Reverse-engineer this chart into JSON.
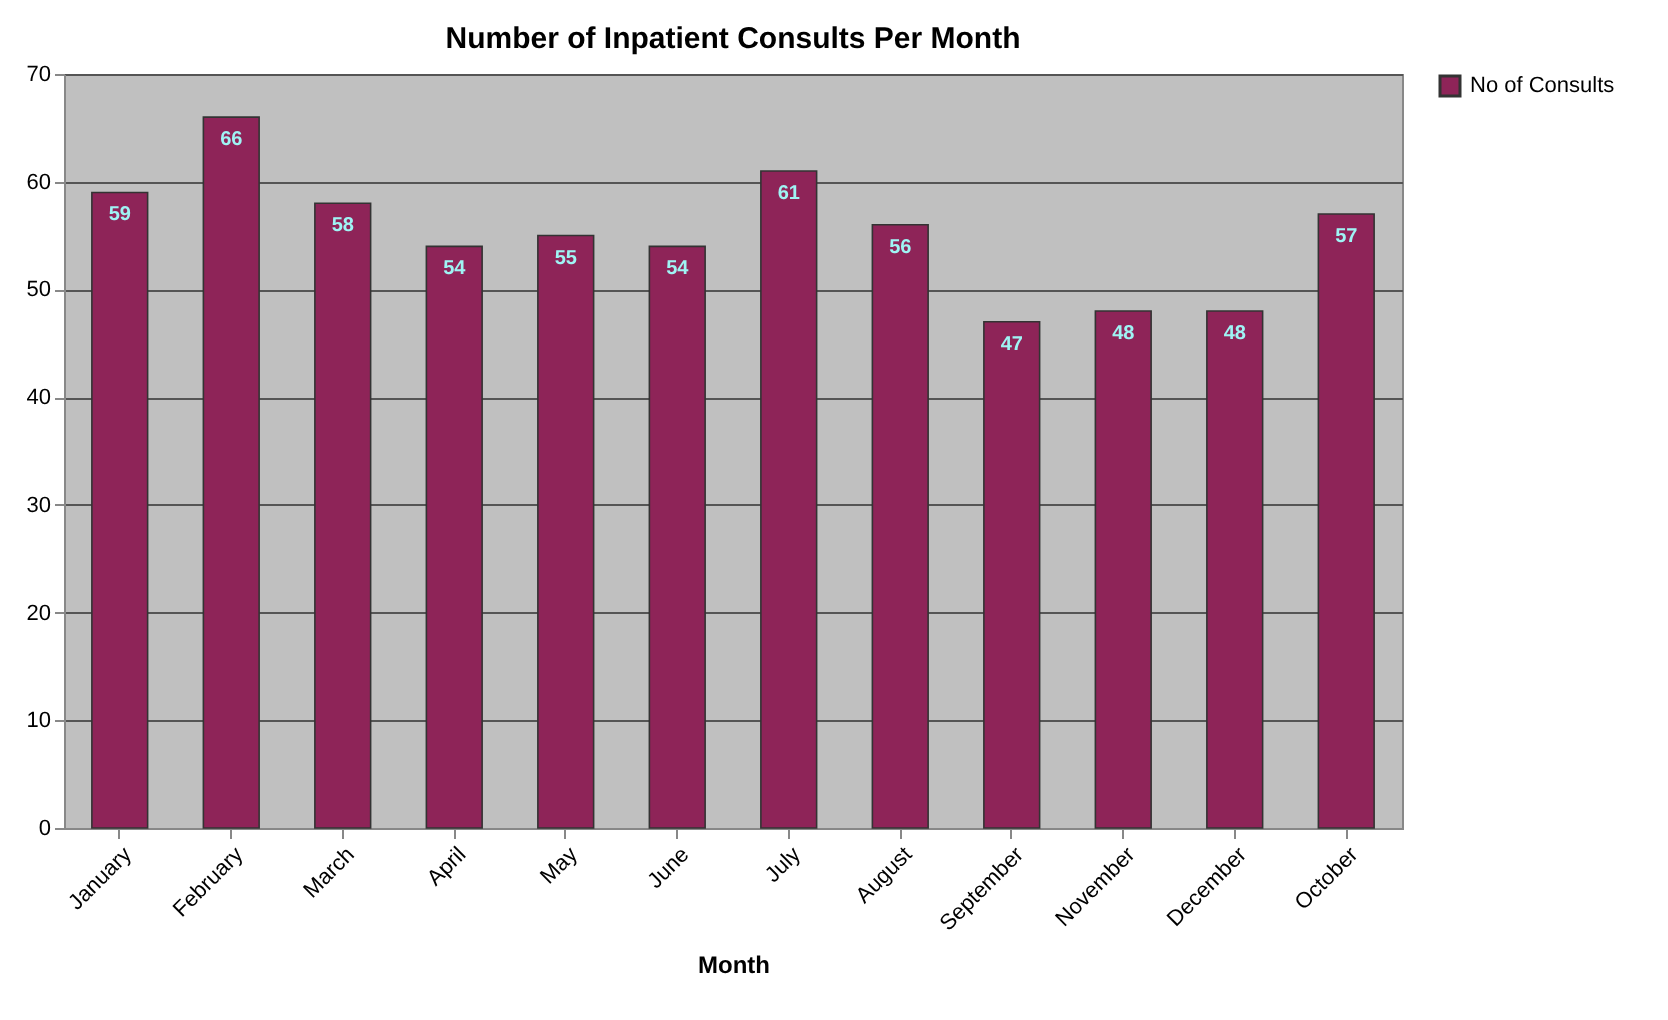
{
  "chart_data": {
    "type": "bar",
    "title": "Number of Inpatient Consults Per Month",
    "xlabel": "Month",
    "categories": [
      "January",
      "February",
      "March",
      "April",
      "May",
      "June",
      "July",
      "August",
      "September",
      "November",
      "December",
      "October"
    ],
    "series": [
      {
        "name": "No of Consults",
        "color": "#8e2458",
        "values": [
          59,
          66,
          58,
          54,
          55,
          54,
          61,
          56,
          47,
          48,
          48,
          57
        ]
      }
    ],
    "ylim": [
      0,
      70
    ],
    "yticks": [
      0,
      10,
      20,
      30,
      40,
      50,
      60,
      70
    ],
    "grid": "y",
    "legend": "right",
    "data_labels": true
  }
}
